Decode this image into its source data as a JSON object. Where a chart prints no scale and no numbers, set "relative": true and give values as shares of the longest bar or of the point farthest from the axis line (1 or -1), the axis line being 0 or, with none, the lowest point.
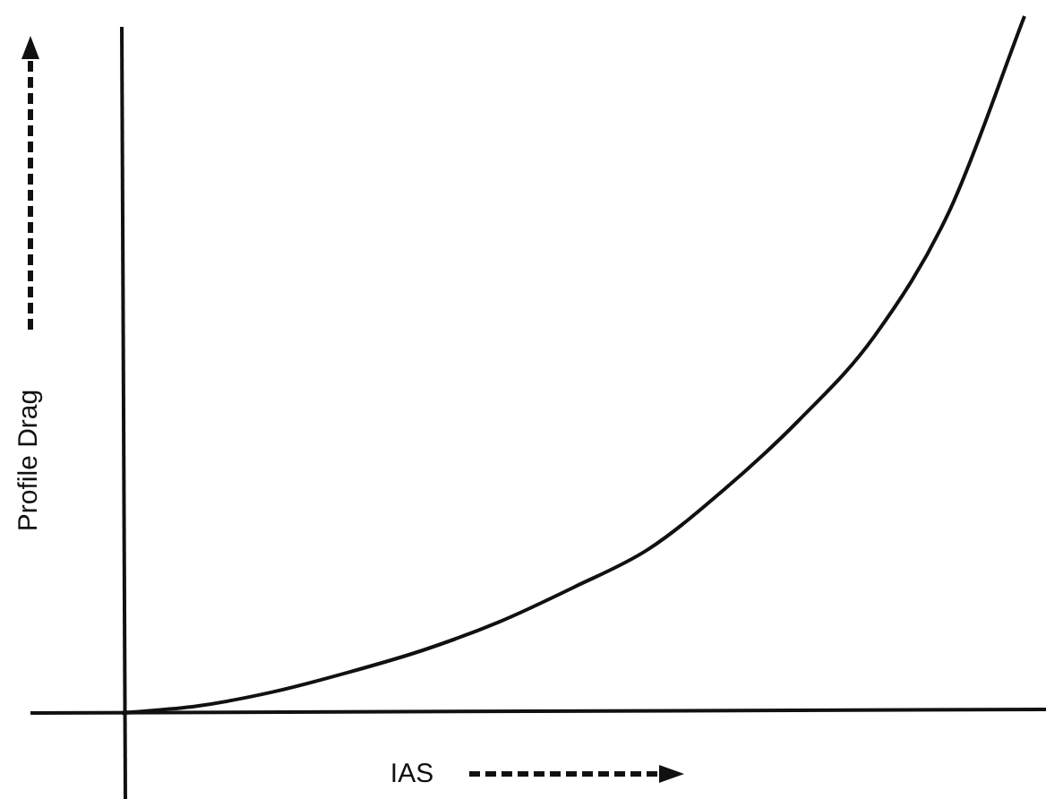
{
  "chart_data": {
    "type": "line",
    "xlabel": "IAS",
    "ylabel": "Profile Drag",
    "relative": true,
    "marker": "none",
    "color": "#111111",
    "categories": [
      null,
      null,
      null,
      null,
      null,
      null,
      null,
      null,
      null,
      null,
      null,
      null,
      null
    ],
    "values": [
      0,
      0.01,
      0.03,
      0.058,
      0.09,
      0.13,
      0.18,
      0.235,
      0.32,
      0.42,
      0.54,
      0.72,
      1
    ]
  }
}
